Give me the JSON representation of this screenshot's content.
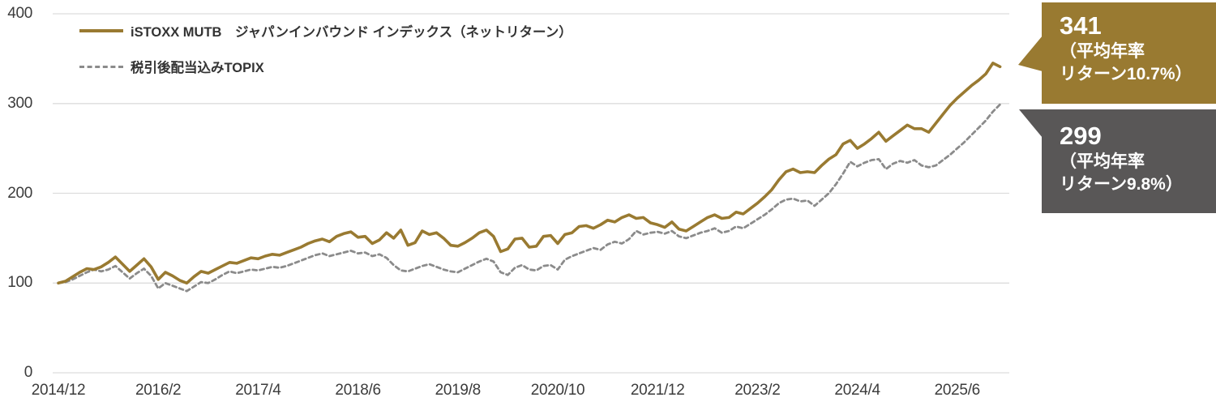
{
  "chart_data": {
    "type": "line",
    "title": "",
    "description": "Index performance chart, base value 100 at 2014/12",
    "x_axis": {
      "start": "2014/12",
      "end": "2025/12",
      "frequency": "monthly",
      "tick_interval_months": 14,
      "tick_labels": [
        "2014/12",
        "2016/2",
        "2017/4",
        "2018/6",
        "2019/8",
        "2020/10",
        "2021/12",
        "2023/2",
        "2024/4",
        "2025/6"
      ]
    },
    "y_axis": {
      "min": 0,
      "max": 400,
      "ticks": [
        0,
        100,
        200,
        300,
        400
      ]
    },
    "grid": "horizontal",
    "legend_position": "top-left",
    "series": [
      {
        "name": "iSTOXX MUTB　ジャパンインバウンド インデックス（ネットリターン）",
        "style": "solid",
        "color": "#997a31",
        "end_value": 341,
        "values": [
          100,
          102,
          107,
          112,
          116,
          115,
          118,
          123,
          129,
          121,
          113,
          120,
          127,
          118,
          104,
          112,
          108,
          103,
          100,
          107,
          113,
          111,
          115,
          119,
          123,
          122,
          125,
          128,
          127,
          130,
          132,
          131,
          134,
          137,
          140,
          144,
          147,
          149,
          146,
          152,
          155,
          157,
          151,
          152,
          144,
          148,
          156,
          150,
          159,
          142,
          145,
          158,
          154,
          156,
          150,
          142,
          141,
          145,
          150,
          156,
          159,
          152,
          135,
          138,
          149,
          150,
          140,
          141,
          152,
          153,
          144,
          154,
          156,
          163,
          164,
          161,
          165,
          170,
          168,
          173,
          176,
          172,
          173,
          167,
          165,
          162,
          168,
          160,
          158,
          163,
          168,
          173,
          176,
          172,
          173,
          179,
          177,
          183,
          189,
          196,
          204,
          215,
          224,
          227,
          223,
          224,
          223,
          231,
          238,
          243,
          255,
          259,
          250,
          255,
          261,
          268,
          258,
          264,
          270,
          276,
          272,
          272,
          268,
          278,
          288,
          298,
          306,
          313,
          320,
          326,
          333,
          345,
          341
        ]
      },
      {
        "name": "税引後配当込みTOPIX",
        "style": "dashed",
        "color": "#8b8b8b",
        "end_value": 299,
        "values": [
          100,
          101,
          104,
          108,
          112,
          115,
          113,
          115,
          119,
          112,
          105,
          111,
          116,
          108,
          94,
          100,
          97,
          94,
          91,
          96,
          101,
          100,
          104,
          109,
          113,
          111,
          113,
          115,
          114,
          116,
          118,
          117,
          119,
          122,
          125,
          128,
          131,
          133,
          130,
          132,
          134,
          136,
          133,
          134,
          130,
          132,
          128,
          120,
          114,
          113,
          116,
          119,
          121,
          118,
          115,
          113,
          112,
          116,
          120,
          124,
          127,
          124,
          112,
          109,
          117,
          120,
          115,
          114,
          119,
          120,
          115,
          126,
          130,
          133,
          136,
          139,
          137,
          143,
          146,
          144,
          149,
          158,
          154,
          156,
          157,
          155,
          158,
          152,
          150,
          153,
          156,
          158,
          161,
          156,
          158,
          163,
          161,
          166,
          171,
          176,
          182,
          189,
          193,
          194,
          191,
          192,
          186,
          193,
          200,
          210,
          222,
          235,
          230,
          234,
          237,
          238,
          227,
          233,
          236,
          234,
          237,
          231,
          229,
          231,
          237,
          243,
          250,
          257,
          265,
          273,
          281,
          291,
          299
        ]
      }
    ],
    "callouts": [
      {
        "value": "341",
        "sub_line1": "（平均年率",
        "sub_line2": "リターン10.7%）",
        "color": "#997a31"
      },
      {
        "value": "299",
        "sub_line1": "（平均年率",
        "sub_line2": "リターン9.8%）",
        "color": "#595757"
      }
    ]
  }
}
